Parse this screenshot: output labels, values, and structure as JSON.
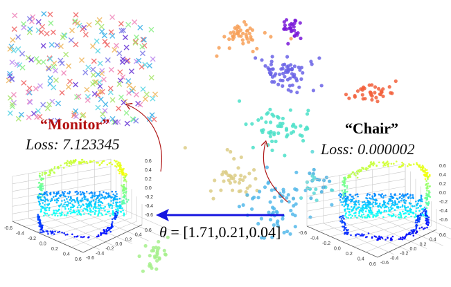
{
  "figure": {
    "left_label": {
      "title": "“Monitor”",
      "loss": "Loss: 7.123345",
      "title_color": "#b30f0f"
    },
    "right_label": {
      "title": "“Chair”",
      "loss": "Loss: 0.000002"
    },
    "transform": {
      "symbol": "θ",
      "text": " = [1.71,0.21,0.04]",
      "arrow_color": "#1515e0"
    },
    "curved_arrow_color": "#b01818",
    "axis_ticks": {
      "z": [
        "0.6",
        "0.4",
        "0.2",
        "0.0",
        "-0.2",
        "-0.4",
        "-0.6"
      ],
      "x": [
        "-0.6",
        "-0.4",
        "-0.2",
        "0.0",
        "0.2",
        "0.4",
        "0.6"
      ],
      "y": [
        "-0.6",
        "-0.4",
        "-0.2",
        "0.0",
        "0.2",
        "0.4",
        "0.6"
      ]
    },
    "clusters": [
      {
        "name": "orange-cluster",
        "color": "#f7a058"
      },
      {
        "name": "purple-cluster",
        "color": "#7a1ad8"
      },
      {
        "name": "blue-violet-cluster",
        "color": "#6a63e6"
      },
      {
        "name": "red-cluster",
        "color": "#f2603c"
      },
      {
        "name": "cyan-cluster",
        "color": "#4ae0c8"
      },
      {
        "name": "tan-cluster",
        "color": "#dccd86"
      },
      {
        "name": "sky-cluster",
        "color": "#54b8ea"
      },
      {
        "name": "light-green-cluster",
        "color": "#a6f08c"
      }
    ]
  }
}
